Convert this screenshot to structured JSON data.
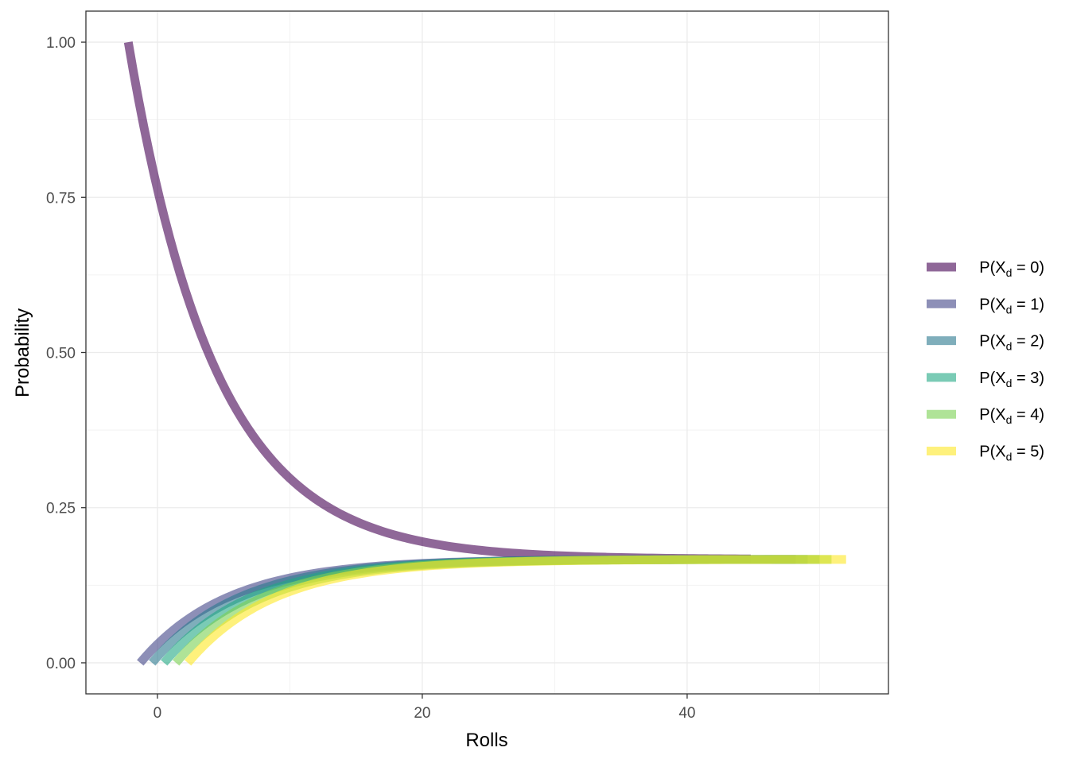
{
  "chart_data": {
    "type": "line",
    "xlabel": "Rolls",
    "ylabel": "Probability",
    "xlim": [
      -5.4,
      55.2
    ],
    "ylim": [
      -0.05,
      1.05
    ],
    "x_ticks": [
      0,
      20,
      40
    ],
    "x_tick_labels": [
      "0",
      "20",
      "40"
    ],
    "y_ticks": [
      0,
      0.25,
      0.5,
      0.75,
      1
    ],
    "y_tick_labels": [
      "0.00",
      "0.25",
      "0.50",
      "0.75",
      "1.00"
    ],
    "grid": true,
    "legend_position": "right",
    "series": [
      {
        "name": "P(X_d = 0)",
        "label_main": "P(X",
        "label_sub": "d",
        "label_tail": " = 0)",
        "color": "#440154",
        "x_start": -2.2,
        "x_end": 44.8,
        "y_start": 1.0,
        "y_end": 0.1667
      },
      {
        "name": "P(X_d = 1)",
        "label_main": "P(X",
        "label_sub": "d",
        "label_tail": " = 1)",
        "color": "#414487",
        "x_start": -1.3,
        "x_end": 48.2,
        "y_start": 0.0,
        "y_end": 0.1667
      },
      {
        "name": "P(X_d = 2)",
        "label_main": "P(X",
        "label_sub": "d",
        "label_tail": " = 2)",
        "color": "#2A788E",
        "x_start": -0.4,
        "x_end": 49.1,
        "y_start": 0.0,
        "y_end": 0.1667
      },
      {
        "name": "P(X_d = 3)",
        "label_main": "P(X",
        "label_sub": "d",
        "label_tail": " = 3)",
        "color": "#22A884",
        "x_start": 0.5,
        "x_end": 50.0,
        "y_start": 0.0,
        "y_end": 0.1667
      },
      {
        "name": "P(X_d = 4)",
        "label_main": "P(X",
        "label_sub": "d",
        "label_tail": " = 4)",
        "color": "#7AD151",
        "x_start": 1.4,
        "x_end": 50.9,
        "y_start": 0.0,
        "y_end": 0.1667
      },
      {
        "name": "P(X_d = 5)",
        "label_main": "P(X",
        "label_sub": "d",
        "label_tail": " = 5)",
        "color": "#FDE725",
        "x_start": 2.3,
        "x_end": 52.0,
        "y_start": 0.0,
        "y_end": 0.1667
      }
    ]
  }
}
